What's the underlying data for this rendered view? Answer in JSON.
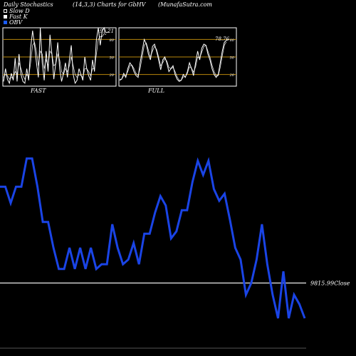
{
  "header": {
    "title": "Daily Stochastics",
    "params": "(14,3,3) Charts for GbHV",
    "source": "(MunafaSutra.com"
  },
  "legend": [
    {
      "label": "Slow  D",
      "color": "#000000"
    },
    {
      "label": "Fast K",
      "color": "#ffffff"
    },
    {
      "label": "OBV",
      "color": "#1a5cff"
    }
  ],
  "colors": {
    "background": "#000000",
    "reference_line": "#b8860b",
    "stochastic_line": "#ffffff",
    "obv_line": "#1a44e6",
    "close_line": "#cccccc"
  },
  "chart_data": [
    {
      "type": "line",
      "name": "fast-stochastic",
      "caption": "FAST",
      "last_value_label": "91.21",
      "ylim": [
        0,
        100
      ],
      "ticks": [
        "80",
        "50",
        "20"
      ],
      "reference_levels": [
        80,
        50,
        20
      ],
      "series": [
        {
          "name": "Fast K",
          "values": [
            8,
            30,
            12,
            5,
            22,
            10,
            48,
            8,
            55,
            20,
            8,
            5,
            30,
            10,
            65,
            95,
            70,
            40,
            15,
            100,
            40,
            10,
            60,
            25,
            88,
            55,
            12,
            40,
            75,
            30,
            8,
            22,
            40,
            15,
            45,
            70,
            20,
            5,
            10,
            30,
            20,
            10,
            50,
            30,
            18,
            10,
            45,
            25,
            80,
            100,
            70,
            95,
            100,
            91.21
          ]
        },
        {
          "name": "Slow D",
          "values": [
            15,
            20,
            18,
            12,
            15,
            14,
            25,
            20,
            40,
            30,
            18,
            12,
            20,
            16,
            40,
            70,
            75,
            60,
            35,
            60,
            55,
            30,
            45,
            35,
            60,
            55,
            35,
            38,
            55,
            45,
            25,
            20,
            30,
            25,
            35,
            50,
            35,
            20,
            15,
            20,
            18,
            15,
            30,
            30,
            25,
            18,
            30,
            30,
            55,
            80,
            85,
            85,
            90,
            88
          ]
        }
      ]
    },
    {
      "type": "line",
      "name": "full-stochastic",
      "caption": "FULL",
      "last_value_label": "78.76",
      "ylim": [
        0,
        100
      ],
      "ticks": [
        "80",
        "50",
        "20"
      ],
      "reference_levels": [
        80,
        50,
        20
      ],
      "series": [
        {
          "name": "Full K",
          "values": [
            10,
            12,
            22,
            15,
            30,
            40,
            35,
            25,
            18,
            15,
            40,
            60,
            80,
            72,
            55,
            45,
            68,
            72,
            60,
            45,
            28,
            45,
            50,
            40,
            25,
            30,
            35,
            20,
            12,
            8,
            10,
            20,
            15,
            25,
            40,
            30,
            18,
            40,
            60,
            45,
            65,
            72,
            70,
            55,
            45,
            30,
            20,
            15,
            20,
            40,
            60,
            75,
            78.76
          ]
        },
        {
          "name": "Full D",
          "values": [
            12,
            12,
            18,
            18,
            25,
            35,
            36,
            30,
            22,
            18,
            30,
            50,
            70,
            74,
            62,
            50,
            60,
            68,
            63,
            50,
            35,
            40,
            47,
            43,
            32,
            30,
            32,
            25,
            16,
            10,
            10,
            16,
            16,
            22,
            33,
            31,
            24,
            33,
            50,
            48,
            58,
            68,
            70,
            60,
            50,
            36,
            25,
            18,
            18,
            32,
            52,
            70,
            76
          ]
        }
      ]
    },
    {
      "type": "line",
      "name": "obv",
      "close_label": "9815.99Close",
      "close_level": 0.25,
      "series": [
        {
          "name": "OBV",
          "values": [
            0.66,
            0.66,
            0.59,
            0.66,
            0.66,
            0.78,
            0.78,
            0.66,
            0.51,
            0.51,
            0.4,
            0.31,
            0.31,
            0.4,
            0.31,
            0.4,
            0.31,
            0.4,
            0.31,
            0.33,
            0.33,
            0.5,
            0.4,
            0.33,
            0.35,
            0.42,
            0.33,
            0.46,
            0.46,
            0.55,
            0.62,
            0.58,
            0.44,
            0.47,
            0.56,
            0.56,
            0.68,
            0.77,
            0.71,
            0.77,
            0.65,
            0.6,
            0.63,
            0.52,
            0.4,
            0.35,
            0.2,
            0.25,
            0.35,
            0.5,
            0.33,
            0.2,
            0.1,
            0.3,
            0.1,
            0.2,
            0.16,
            0.1
          ]
        }
      ]
    }
  ]
}
